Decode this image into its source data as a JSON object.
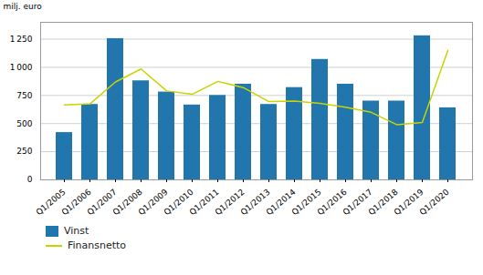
{
  "chart_data": {
    "type": "bar",
    "categories": [
      "Q1/2005",
      "Q1/2006",
      "Q1/2007",
      "Q1/2008",
      "Q1/2009",
      "Q1/2010",
      "Q1/2011",
      "Q1/2012",
      "Q1/2013",
      "Q1/2014",
      "Q1/2015",
      "Q1/2016",
      "Q1/2017",
      "Q1/2018",
      "Q1/2019",
      "Q1/2020"
    ],
    "series": [
      {
        "name": "Vinst",
        "type": "bar",
        "color": "#2176AE",
        "values": [
          420,
          670,
          1255,
          880,
          780,
          665,
          750,
          850,
          670,
          820,
          1070,
          850,
          700,
          700,
          1280,
          640
        ]
      },
      {
        "name": "Finansnetto",
        "type": "line",
        "color": "#C8D400",
        "values": [
          665,
          675,
          870,
          985,
          790,
          760,
          875,
          820,
          695,
          700,
          680,
          645,
          600,
          490,
          510,
          1150
        ]
      }
    ],
    "ylabel": "milj. euro",
    "ylim": [
      0,
      1400
    ],
    "yticks": [
      0,
      250,
      500,
      750,
      {
        "value": 1000,
        "label": "1 000"
      },
      {
        "value": 1250,
        "label": "1 250"
      }
    ],
    "grid": true,
    "legend": "bottom"
  }
}
